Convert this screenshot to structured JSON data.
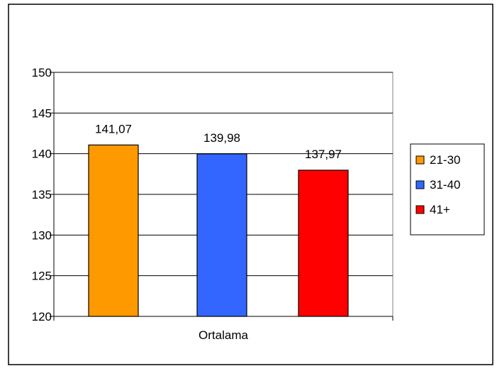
{
  "chart_data": {
    "type": "bar",
    "categories": [
      "Ortalama"
    ],
    "series": [
      {
        "name": "21-30",
        "values": [
          141.07
        ],
        "label": "141,07",
        "color": "#FF9900"
      },
      {
        "name": "31-40",
        "values": [
          139.98
        ],
        "label": "139,98",
        "color": "#3366FF"
      },
      {
        "name": "41+",
        "values": [
          137.97
        ],
        "label": "137,97",
        "color": "#FF0000"
      }
    ],
    "ylim": [
      120,
      150
    ],
    "yticks": [
      120,
      125,
      130,
      135,
      140,
      145,
      150
    ],
    "grid": true,
    "legend": "right",
    "plot_background": "#FFFFFF",
    "frame_color": "#000000"
  }
}
